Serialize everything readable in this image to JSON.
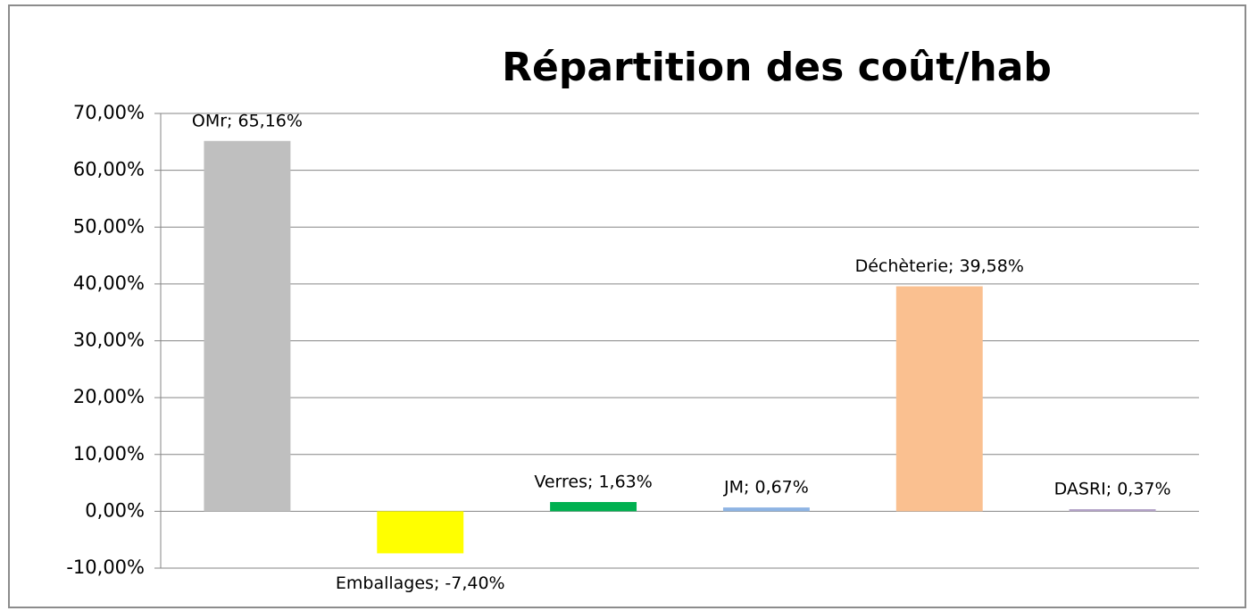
{
  "chart_data": {
    "type": "bar",
    "title": "Répartition des coût/hab",
    "values": [
      65.16,
      -7.4,
      1.63,
      0.67,
      39.58,
      0.37
    ],
    "value_labels": [
      "OMr; 65,16%",
      "Emballages; -7,40%",
      "Verres; 1,63%",
      "JM; 0,67%",
      "Déchèterie; 39,58%",
      "DASRI; 0,37%"
    ],
    "colors": [
      "#bfbfbf",
      "#ffff00",
      "#00b050",
      "#8eb4e3",
      "#fac090",
      "#b3a2c7"
    ],
    "ylim": [
      -10,
      70
    ],
    "yticks": [
      {
        "value": -10,
        "label": "-10,00%"
      },
      {
        "value": 0,
        "label": "0,00%"
      },
      {
        "value": 10,
        "label": "10,00%"
      },
      {
        "value": 20,
        "label": "20,00%"
      },
      {
        "value": 30,
        "label": "30,00%"
      },
      {
        "value": 40,
        "label": "40,00%"
      },
      {
        "value": 50,
        "label": "50,00%"
      },
      {
        "value": 60,
        "label": "60,00%"
      },
      {
        "value": 70,
        "label": "70,00%"
      }
    ],
    "grid": true
  }
}
